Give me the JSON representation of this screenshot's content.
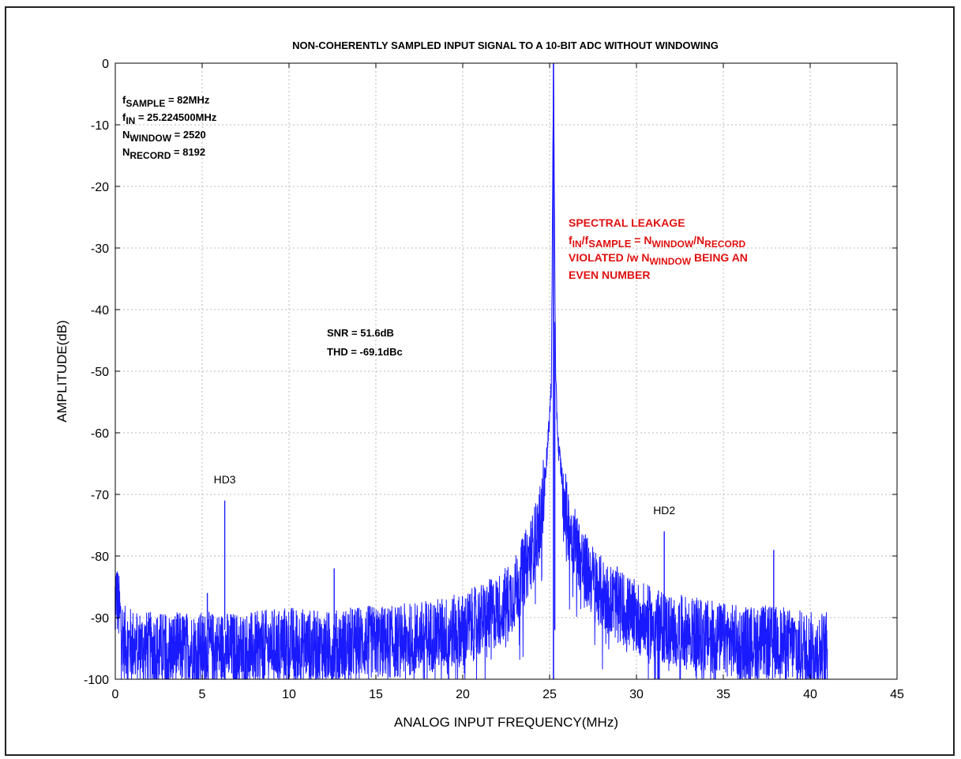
{
  "chart_data": {
    "type": "line",
    "title": "NON-COHERENTLY SAMPLED INPUT SIGNAL TO A 10-BIT ADC WITHOUT WINDOWING",
    "xlabel": "ANALOG INPUT FREQUENCY(MHz)",
    "ylabel": "AMPLITUDE(dB)",
    "xlim": [
      0,
      45
    ],
    "ylim": [
      -100,
      0
    ],
    "x_ticks": [
      "0",
      "5",
      "10",
      "15",
      "20",
      "25",
      "30",
      "35",
      "40",
      "45"
    ],
    "y_ticks": [
      "0",
      "-10",
      "-20",
      "-30",
      "-40",
      "-50",
      "-60",
      "-70",
      "-80",
      "-90",
      "-100"
    ],
    "grid": true,
    "line_color": "#1a1aff",
    "series": [
      {
        "x": [
          0,
          0.5,
          2,
          4,
          6,
          8,
          10,
          12,
          14,
          16,
          18,
          20,
          22,
          23,
          24,
          24.5,
          24.9,
          25.1,
          25.224,
          25.35,
          25.5,
          26,
          26.5,
          27,
          28,
          30,
          32,
          34,
          36,
          38,
          40,
          41
        ],
        "values": [
          -85,
          -94,
          -95,
          -95,
          -95,
          -95,
          -94,
          -95,
          -94,
          -94,
          -93,
          -92,
          -89,
          -86,
          -79,
          -74,
          -62,
          -52,
          0,
          -52,
          -62,
          -74,
          -78,
          -82,
          -86,
          -90,
          -92,
          -93,
          -94,
          -94,
          -95,
          -95
        ]
      }
    ],
    "spurs": [
      {
        "label": "",
        "x": 0.0,
        "y": -85
      },
      {
        "label": "",
        "x": 5.3,
        "y": -86
      },
      {
        "label": "HD3",
        "x": 6.3,
        "y": -71
      },
      {
        "label": "",
        "x": 12.6,
        "y": -82
      },
      {
        "label": "",
        "x": 25.3,
        "y": -42
      },
      {
        "label": "HD2",
        "x": 31.6,
        "y": -76
      },
      {
        "label": "",
        "x": 37.9,
        "y": -79
      }
    ],
    "annotations": {
      "params": [
        {
          "sym": "f",
          "sub": "SAMPLE",
          "val": " = 82MHz"
        },
        {
          "sym": "f",
          "sub": "IN",
          "val": " = 25.224500MHz"
        },
        {
          "sym": "N",
          "sub": "WINDOW",
          "val": " = 2520"
        },
        {
          "sym": "N",
          "sub": "RECORD",
          "val": " = 8192"
        }
      ],
      "snr": "SNR = 51.6dB",
      "thd": "THD = -69.1dBc",
      "leakage_color": "#e01010",
      "leakage_line1": "SPECTRAL LEAKAGE",
      "leakage_line2": {
        "a": "f",
        "a_sub": "IN",
        "b": "/f",
        "b_sub": "SAMPLE",
        "c": " = ",
        "d": "N",
        "d_sub": "WINDOW",
        "e": "/N",
        "e_sub": "RECORD"
      },
      "leakage_line3": {
        "a": "VIOLATED /w ",
        "b": "N",
        "b_sub": "WINDOW",
        "c": " BEING AN"
      },
      "leakage_line4": "EVEN NUMBER"
    }
  }
}
